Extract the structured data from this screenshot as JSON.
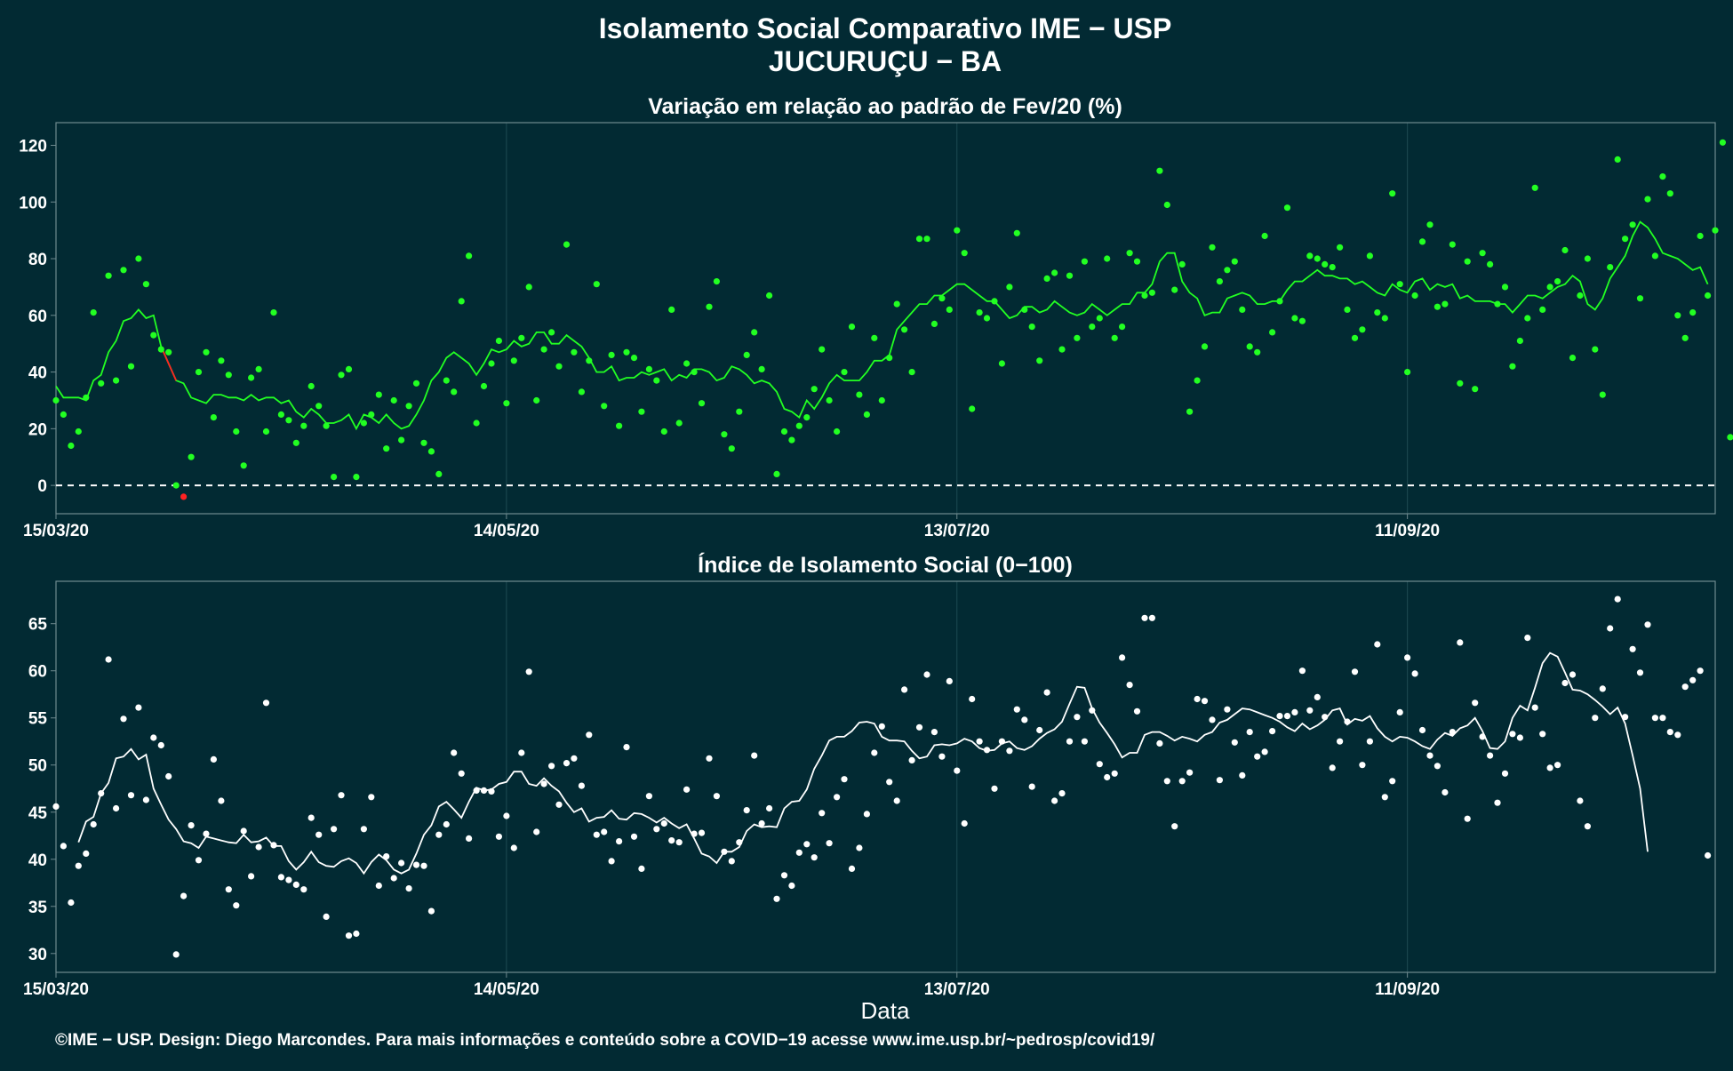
{
  "header": {
    "title": "Isolamento Social Comparativo IME − USP",
    "subtitle": "JUCURUÇU − BA"
  },
  "footer": {
    "credit": "©IME − USP. Design: Diego Marcondes. Para mais informações e conteúdo sobre a COVID−19 acesse www.ime.usp.br/~pedrosp/covid19/"
  },
  "colors": {
    "background": "#022a33",
    "panel_border": "#6f8a8f",
    "grid": "#1e4a52",
    "top_points": "#22ff22",
    "top_line": "#22ff22",
    "negative_points": "#ff2222",
    "bottom_points": "#ffffff",
    "bottom_line": "#ffffff"
  },
  "chart_data": [
    {
      "type": "scatter",
      "title": "Variação em relação ao padrão de Fev/20 (%)",
      "xlabel": "",
      "ylabel": "",
      "x_start": "15/03/20",
      "x_ticks": [
        "15/03/20",
        "14/05/20",
        "13/07/20",
        "11/09/20"
      ],
      "x_tick_positions": [
        0,
        60,
        120,
        180
      ],
      "xlim": [
        0,
        221
      ],
      "ylim": [
        -10,
        128
      ],
      "y_ticks": [
        0,
        20,
        40,
        60,
        80,
        100,
        120
      ],
      "reference_line": 0,
      "grid": true,
      "points": [
        30,
        25,
        14,
        19,
        31,
        61,
        36,
        74,
        37,
        76,
        42,
        80,
        71,
        53,
        48,
        47,
        0,
        -4,
        10,
        40,
        47,
        24,
        44,
        39,
        19,
        7,
        38,
        41,
        19,
        61,
        25,
        23,
        15,
        21,
        35,
        28,
        21,
        3,
        39,
        41,
        3,
        22,
        25,
        32,
        13,
        30,
        16,
        28,
        36,
        15,
        12,
        4,
        37,
        33,
        65,
        81,
        22,
        35,
        43,
        51,
        29,
        44,
        52,
        70,
        30,
        48,
        54,
        42,
        85,
        47,
        33,
        44,
        71,
        28,
        46,
        21,
        47,
        45,
        26,
        41,
        37,
        19,
        62,
        22,
        43,
        40,
        29,
        63,
        72,
        18,
        13,
        26,
        46,
        54,
        41,
        67,
        4,
        19,
        16,
        21,
        24,
        34,
        48,
        30,
        19,
        40,
        56,
        32,
        25,
        52,
        30,
        45,
        64,
        55,
        40,
        87,
        87,
        57,
        66,
        62,
        90,
        82,
        27,
        61,
        59,
        65,
        43,
        70,
        89,
        62,
        56,
        44,
        73,
        75,
        48,
        74,
        52,
        79,
        56,
        59,
        80,
        52,
        56,
        82,
        79,
        67,
        68,
        111,
        99,
        69,
        78,
        26,
        37,
        49,
        84,
        72,
        76,
        79,
        62,
        49,
        47,
        88,
        54,
        65,
        98,
        59,
        58,
        81,
        80,
        78,
        77,
        84,
        62,
        52,
        55,
        81,
        61,
        59,
        103,
        71,
        40,
        67,
        86,
        92,
        63,
        64,
        85,
        36,
        79,
        34,
        82,
        78,
        64,
        70,
        42,
        51,
        59,
        105,
        62,
        70,
        72,
        83,
        45,
        67,
        80,
        48,
        32,
        77,
        115,
        87,
        92,
        66,
        101,
        81,
        109,
        103,
        60,
        52,
        61,
        88,
        67,
        90,
        121,
        17
      ],
      "series": [
        {
          "name": "",
          "kind": "moving_average",
          "start_index": 0,
          "values": [
            35,
            31,
            31,
            31,
            30,
            37,
            39,
            47,
            51,
            58,
            59,
            62,
            59,
            60,
            49,
            43,
            37,
            36,
            31,
            30,
            29,
            32,
            32,
            31,
            31,
            30,
            32,
            30,
            31,
            31,
            29,
            30,
            26,
            24,
            27,
            25,
            22,
            22,
            23,
            25,
            20,
            25,
            24,
            22,
            25,
            22,
            20,
            21,
            25,
            30,
            37,
            40,
            45,
            47,
            45,
            43,
            39,
            43,
            48,
            47,
            48,
            51,
            49,
            50,
            54,
            54,
            50,
            50,
            53,
            51,
            49,
            45,
            40,
            40,
            42,
            37,
            38,
            38,
            40,
            39,
            40,
            41,
            37,
            39,
            38,
            41,
            41,
            40,
            37,
            38,
            42,
            41,
            39,
            36,
            37,
            36,
            33,
            27,
            26,
            24,
            30,
            27,
            31,
            36,
            39,
            37,
            37,
            37,
            40,
            44,
            44,
            46,
            55,
            58,
            61,
            64,
            64,
            67,
            67,
            69,
            71,
            71,
            69,
            67,
            65,
            65,
            62,
            59,
            60,
            63,
            63,
            61,
            62,
            65,
            63,
            61,
            60,
            61,
            64,
            62,
            60,
            62,
            64,
            64,
            68,
            68,
            71,
            79,
            82,
            82,
            72,
            68,
            66,
            60,
            61,
            61,
            66,
            67,
            68,
            67,
            64,
            64,
            65,
            65,
            69,
            72,
            72,
            74,
            76,
            74,
            74,
            73,
            73,
            71,
            72,
            70,
            68,
            67,
            71,
            69,
            68,
            72,
            73,
            69,
            71,
            70,
            71,
            66,
            67,
            65,
            65,
            65,
            64,
            64,
            61,
            64,
            67,
            67,
            66,
            68,
            70,
            71,
            74,
            72,
            64,
            62,
            66,
            73,
            77,
            81,
            88,
            93,
            91,
            87,
            82,
            81,
            80,
            78,
            76,
            77,
            71
          ]
        }
      ],
      "negative_segment": {
        "from_index": 14,
        "to_index": 16
      }
    },
    {
      "type": "scatter",
      "title": "Índice de Isolamento Social (0−100)",
      "xlabel": "Data",
      "ylabel": "",
      "x_ticks": [
        "15/03/20",
        "14/05/20",
        "13/07/20",
        "11/09/20"
      ],
      "x_tick_positions": [
        0,
        60,
        120,
        180
      ],
      "xlim": [
        0,
        221
      ],
      "ylim": [
        28,
        69.5
      ],
      "y_ticks": [
        30,
        35,
        40,
        45,
        50,
        55,
        60,
        65
      ],
      "grid": true,
      "points": [
        45.6,
        41.4,
        35.4,
        39.3,
        40.6,
        43.7,
        47.0,
        61.2,
        45.4,
        54.9,
        46.8,
        56.1,
        46.3,
        52.9,
        52.1,
        48.8,
        29.9,
        36.1,
        43.6,
        39.9,
        42.7,
        50.6,
        46.2,
        36.8,
        35.1,
        43.0,
        38.2,
        41.3,
        56.6,
        41.5,
        38.1,
        37.8,
        37.3,
        36.8,
        44.4,
        42.6,
        33.9,
        43.2,
        46.8,
        31.9,
        32.1,
        43.2,
        46.6,
        37.2,
        40.3,
        38.0,
        39.6,
        36.9,
        39.4,
        39.3,
        34.5,
        42.6,
        43.7,
        51.3,
        49.1,
        42.2,
        47.3,
        47.3,
        47.2,
        42.4,
        44.6,
        41.2,
        51.3,
        59.9,
        42.9,
        48.0,
        49.9,
        45.8,
        50.2,
        50.7,
        47.8,
        53.2,
        42.6,
        42.9,
        39.8,
        41.9,
        51.9,
        42.4,
        39.0,
        46.7,
        43.2,
        43.8,
        42.0,
        41.8,
        47.4,
        42.7,
        42.8,
        50.7,
        46.7,
        40.8,
        39.8,
        41.8,
        45.2,
        51.0,
        43.8,
        45.4,
        35.8,
        38.3,
        37.2,
        40.7,
        41.6,
        40.2,
        44.9,
        41.7,
        46.6,
        48.5,
        39.0,
        41.2,
        44.8,
        51.3,
        54.1,
        48.2,
        46.2,
        58.0,
        50.5,
        54.0,
        59.6,
        53.5,
        50.9,
        58.9,
        49.4,
        43.8,
        57.0,
        52.5,
        51.6,
        47.5,
        52.5,
        51.5,
        55.9,
        54.8,
        47.7,
        53.7,
        57.7,
        46.2,
        47.0,
        52.5,
        55.1,
        52.5,
        55.8,
        50.1,
        48.7,
        49.1,
        61.4,
        58.5,
        55.7,
        65.6,
        65.6,
        52.3,
        48.3,
        43.5,
        48.3,
        49.2,
        57.0,
        56.8,
        54.8,
        48.4,
        55.9,
        52.4,
        48.9,
        53.5,
        50.9,
        51.4,
        53.6,
        55.2,
        55.2,
        55.6,
        60.0,
        55.8,
        57.2,
        55.1,
        49.7,
        52.5,
        54.6,
        59.9,
        50.0,
        52.5,
        62.8,
        46.6,
        48.3,
        55.6,
        61.4,
        59.7,
        53.7,
        51.0,
        49.9,
        47.1,
        53.5,
        63.0,
        44.3,
        56.6,
        53.0,
        51.0,
        46.0,
        49.1,
        53.3,
        52.9,
        63.5,
        56.1,
        53.3,
        49.7,
        50.0,
        58.7,
        59.6,
        46.2,
        43.5,
        55.0,
        58.1,
        64.5,
        67.6,
        55.1,
        62.3,
        59.8,
        64.9,
        55.0,
        55.0,
        53.5,
        53.2,
        58.3,
        59.0,
        60.0,
        40.4
      ],
      "series": [
        {
          "name": "",
          "kind": "moving_average",
          "start_index": 3,
          "values": [
            41.8,
            44.0,
            44.5,
            47.0,
            48.1,
            50.7,
            50.9,
            51.7,
            50.6,
            51.1,
            47.5,
            45.8,
            44.2,
            43.2,
            41.9,
            41.7,
            41.2,
            42.4,
            42.2,
            42.0,
            41.8,
            41.7,
            42.6,
            41.8,
            41.9,
            42.3,
            41.4,
            41.4,
            39.8,
            38.9,
            39.7,
            40.8,
            39.7,
            39.3,
            39.2,
            39.8,
            40.1,
            39.6,
            38.5,
            39.7,
            40.5,
            39.9,
            38.9,
            38.5,
            38.9,
            40.6,
            42.6,
            43.6,
            45.6,
            46.1,
            45.3,
            44.4,
            46.1,
            47.6,
            47.3,
            47.4,
            48.0,
            48.2,
            49.3,
            49.3,
            48.0,
            47.8,
            48.6,
            47.8,
            47.2,
            46.0,
            45.0,
            45.4,
            44.0,
            44.4,
            44.5,
            45.2,
            44.3,
            44.2,
            44.9,
            44.8,
            44.4,
            43.9,
            44.4,
            43.8,
            43.3,
            43.7,
            42.2,
            40.6,
            40.3,
            39.6,
            40.8,
            40.8,
            41.3,
            43.0,
            43.7,
            43.4,
            43.5,
            43.4,
            45.4,
            46.1,
            46.2,
            47.4,
            49.6,
            51.0,
            52.6,
            53.0,
            53.0,
            53.6,
            54.5,
            54.6,
            54.4,
            53.0,
            52.6,
            52.6,
            52.5,
            51.5,
            50.7,
            50.9,
            52.1,
            52.2,
            52.1,
            52.3,
            52.8,
            52.5,
            51.8,
            51.5,
            51.6,
            52.3,
            52.5,
            51.8,
            51.6,
            52.0,
            52.8,
            53.4,
            53.8,
            54.6,
            56.5,
            58.3,
            58.2,
            56.0,
            54.5,
            53.4,
            52.2,
            50.8,
            51.3,
            51.3,
            53.2,
            53.5,
            53.5,
            53.1,
            52.6,
            53.0,
            52.8,
            52.5,
            53.2,
            53.5,
            54.5,
            54.8,
            55.4,
            56.0,
            55.9,
            55.6,
            55.3,
            55.0,
            54.6,
            54.0,
            53.6,
            54.4,
            53.8,
            54.2,
            54.8,
            55.8,
            56.0,
            54.3,
            54.9,
            54.7,
            55.2,
            53.9,
            53.0,
            52.5,
            53.0,
            52.9,
            52.5,
            52.0,
            51.7,
            52.7,
            53.4,
            53.1,
            53.9,
            54.2,
            55.0,
            53.6,
            51.8,
            51.7,
            52.5,
            55.0,
            56.3,
            55.8,
            58.2,
            60.8,
            61.9,
            61.5,
            59.8,
            58.0,
            57.9,
            57.5,
            56.9,
            56.2,
            55.4,
            56.1,
            54.4,
            51.0,
            47.5,
            40.8
          ]
        }
      ]
    }
  ]
}
